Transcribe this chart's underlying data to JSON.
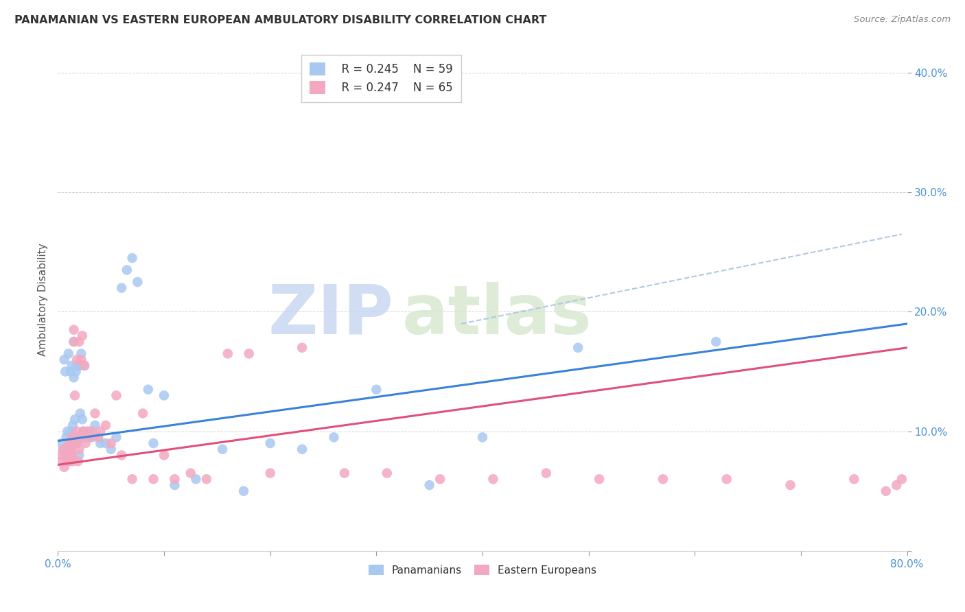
{
  "title": "PANAMANIAN VS EASTERN EUROPEAN AMBULATORY DISABILITY CORRELATION CHART",
  "source": "Source: ZipAtlas.com",
  "ylabel": "Ambulatory Disability",
  "xlim": [
    0.0,
    0.8
  ],
  "ylim": [
    0.0,
    0.42
  ],
  "blue_color": "#a8c8f0",
  "pink_color": "#f4a8c0",
  "line_blue": "#3a82d9",
  "line_pink": "#e0507a",
  "dash_color": "#b0c8e8",
  "watermark_zip_color": "#c8d8f0",
  "watermark_atlas_color": "#d8e8d0",
  "legend_r1": "R = 0.245",
  "legend_n1": "N = 59",
  "legend_r2": "R = 0.247",
  "legend_n2": "N = 65",
  "blue_scatter_x": [
    0.003,
    0.005,
    0.006,
    0.007,
    0.008,
    0.009,
    0.01,
    0.01,
    0.011,
    0.012,
    0.012,
    0.013,
    0.013,
    0.014,
    0.014,
    0.015,
    0.015,
    0.016,
    0.016,
    0.017,
    0.018,
    0.018,
    0.019,
    0.02,
    0.02,
    0.021,
    0.022,
    0.023,
    0.024,
    0.025,
    0.026,
    0.028,
    0.03,
    0.032,
    0.035,
    0.038,
    0.04,
    0.045,
    0.05,
    0.055,
    0.06,
    0.065,
    0.07,
    0.075,
    0.085,
    0.09,
    0.1,
    0.11,
    0.13,
    0.155,
    0.175,
    0.2,
    0.23,
    0.26,
    0.3,
    0.35,
    0.4,
    0.49,
    0.62
  ],
  "blue_scatter_y": [
    0.09,
    0.085,
    0.16,
    0.15,
    0.095,
    0.1,
    0.08,
    0.165,
    0.085,
    0.09,
    0.15,
    0.155,
    0.1,
    0.095,
    0.105,
    0.175,
    0.145,
    0.09,
    0.11,
    0.15,
    0.09,
    0.155,
    0.095,
    0.155,
    0.08,
    0.115,
    0.165,
    0.11,
    0.1,
    0.155,
    0.095,
    0.095,
    0.1,
    0.095,
    0.105,
    0.095,
    0.09,
    0.09,
    0.085,
    0.095,
    0.22,
    0.235,
    0.245,
    0.225,
    0.135,
    0.09,
    0.13,
    0.055,
    0.06,
    0.085,
    0.05,
    0.09,
    0.085,
    0.095,
    0.135,
    0.055,
    0.095,
    0.17,
    0.175
  ],
  "pink_scatter_x": [
    0.003,
    0.004,
    0.005,
    0.006,
    0.007,
    0.008,
    0.009,
    0.01,
    0.01,
    0.011,
    0.012,
    0.012,
    0.013,
    0.013,
    0.014,
    0.015,
    0.015,
    0.016,
    0.016,
    0.017,
    0.018,
    0.018,
    0.019,
    0.02,
    0.02,
    0.021,
    0.022,
    0.023,
    0.024,
    0.025,
    0.026,
    0.028,
    0.03,
    0.032,
    0.035,
    0.038,
    0.04,
    0.045,
    0.05,
    0.055,
    0.06,
    0.07,
    0.08,
    0.09,
    0.1,
    0.11,
    0.125,
    0.14,
    0.16,
    0.18,
    0.2,
    0.23,
    0.27,
    0.31,
    0.36,
    0.41,
    0.46,
    0.51,
    0.57,
    0.63,
    0.69,
    0.75,
    0.78,
    0.79,
    0.795
  ],
  "pink_scatter_y": [
    0.08,
    0.075,
    0.085,
    0.07,
    0.08,
    0.085,
    0.075,
    0.08,
    0.09,
    0.075,
    0.08,
    0.085,
    0.08,
    0.095,
    0.075,
    0.175,
    0.185,
    0.09,
    0.13,
    0.09,
    0.1,
    0.16,
    0.075,
    0.175,
    0.085,
    0.095,
    0.16,
    0.18,
    0.1,
    0.155,
    0.09,
    0.1,
    0.095,
    0.1,
    0.115,
    0.095,
    0.1,
    0.105,
    0.09,
    0.13,
    0.08,
    0.06,
    0.115,
    0.06,
    0.08,
    0.06,
    0.065,
    0.06,
    0.165,
    0.165,
    0.065,
    0.17,
    0.065,
    0.065,
    0.06,
    0.06,
    0.065,
    0.06,
    0.06,
    0.06,
    0.055,
    0.06,
    0.05,
    0.055,
    0.06
  ],
  "blue_line_x": [
    0.0,
    0.8
  ],
  "blue_line_y": [
    0.092,
    0.19
  ],
  "pink_line_x": [
    0.0,
    0.8
  ],
  "pink_line_y": [
    0.072,
    0.17
  ],
  "dash_line_x": [
    0.38,
    0.795
  ],
  "dash_line_y": [
    0.19,
    0.265
  ]
}
